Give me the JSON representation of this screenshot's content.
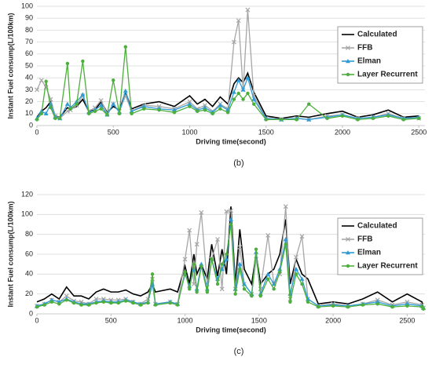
{
  "chart_data": [
    {
      "type": "line",
      "caption": "(b)",
      "ylabel": "Instant Fuel consump(L/100km)",
      "xlabel": "Driving time(second)",
      "x": [
        0,
        30,
        60,
        90,
        120,
        150,
        200,
        220,
        260,
        300,
        340,
        380,
        420,
        460,
        500,
        540,
        580,
        620,
        700,
        800,
        900,
        1000,
        1050,
        1100,
        1150,
        1200,
        1250,
        1290,
        1320,
        1350,
        1380,
        1420,
        1500,
        1600,
        1700,
        1780,
        1900,
        2000,
        2100,
        2200,
        2300,
        2400,
        2500
      ],
      "series": [
        {
          "name": "Calculated",
          "color": "#000000",
          "marker": "none",
          "values": [
            7,
            12,
            15,
            20,
            8,
            7,
            15,
            14,
            16,
            22,
            12,
            13,
            20,
            11,
            16,
            13,
            28,
            14,
            18,
            20,
            16,
            25,
            18,
            22,
            16,
            24,
            18,
            35,
            40,
            36,
            44,
            28,
            8,
            6,
            8,
            7,
            10,
            12,
            7,
            9,
            13,
            7,
            8
          ]
        },
        {
          "name": "FFB",
          "color": "#a6a6a6",
          "marker": "x",
          "values": [
            30,
            38,
            32,
            22,
            8,
            6,
            12,
            13,
            17,
            25,
            12,
            15,
            21,
            10,
            18,
            12,
            25,
            12,
            17,
            16,
            14,
            20,
            14,
            17,
            12,
            18,
            14,
            70,
            88,
            30,
            97,
            25,
            6,
            5,
            6,
            5,
            8,
            9,
            6,
            7,
            10,
            6,
            6
          ]
        },
        {
          "name": "Elman",
          "color": "#2e9bd6",
          "marker": "triangle",
          "values": [
            6,
            12,
            10,
            18,
            7,
            6,
            18,
            15,
            20,
            26,
            11,
            13,
            17,
            9,
            18,
            11,
            29,
            12,
            16,
            14,
            13,
            18,
            13,
            15,
            11,
            17,
            13,
            28,
            38,
            30,
            40,
            22,
            6,
            5,
            6,
            5,
            7,
            9,
            6,
            7,
            9,
            6,
            7
          ]
        },
        {
          "name": "Layer Recurrent",
          "color": "#4caf3c",
          "marker": "circle",
          "values": [
            5,
            10,
            37,
            15,
            6,
            6,
            52,
            14,
            18,
            54,
            10,
            12,
            14,
            9,
            38,
            10,
            66,
            10,
            14,
            13,
            11,
            16,
            12,
            13,
            10,
            14,
            11,
            22,
            27,
            22,
            27,
            18,
            5,
            5,
            5,
            18,
            6,
            8,
            5,
            6,
            8,
            5,
            6
          ]
        }
      ],
      "xlim": [
        0,
        2540
      ],
      "xticks": [
        0,
        500,
        1000,
        1500,
        2000,
        2500
      ],
      "ylim": [
        0,
        100
      ],
      "yticks": [
        0,
        10,
        20,
        30,
        40,
        50,
        60,
        70,
        80,
        90,
        100
      ],
      "grid": true,
      "legend": "right"
    },
    {
      "type": "line",
      "caption": "(c)",
      "ylabel": "Instant Fuel consump(L/100km)",
      "xlabel": "Driving time(second)",
      "x": [
        0,
        50,
        100,
        150,
        200,
        250,
        300,
        350,
        400,
        450,
        500,
        550,
        600,
        650,
        700,
        750,
        780,
        800,
        900,
        950,
        1000,
        1030,
        1060,
        1080,
        1110,
        1150,
        1180,
        1220,
        1250,
        1280,
        1310,
        1340,
        1370,
        1400,
        1450,
        1480,
        1510,
        1560,
        1600,
        1640,
        1680,
        1710,
        1750,
        1790,
        1830,
        1900,
        2000,
        2100,
        2200,
        2300,
        2400,
        2500,
        2600,
        2610
      ],
      "series": [
        {
          "name": "Calculated",
          "color": "#000000",
          "marker": "none",
          "values": [
            12,
            15,
            20,
            15,
            27,
            18,
            18,
            15,
            22,
            25,
            22,
            22,
            24,
            20,
            18,
            22,
            30,
            22,
            25,
            22,
            48,
            30,
            60,
            40,
            50,
            35,
            70,
            38,
            65,
            40,
            108,
            30,
            85,
            45,
            30,
            60,
            30,
            40,
            45,
            60,
            95,
            30,
            55,
            40,
            35,
            10,
            12,
            10,
            15,
            22,
            12,
            20,
            12,
            5
          ]
        },
        {
          "name": "FFB",
          "color": "#a6a6a6",
          "marker": "x",
          "values": [
            8,
            10,
            14,
            12,
            18,
            13,
            12,
            10,
            15,
            15,
            14,
            14,
            15,
            12,
            10,
            15,
            35,
            10,
            12,
            10,
            55,
            84,
            30,
            70,
            102,
            30,
            55,
            75,
            25,
            103,
            104,
            25,
            67,
            30,
            20,
            55,
            25,
            79,
            30,
            40,
            108,
            15,
            57,
            78,
            15,
            8,
            10,
            8,
            10,
            14,
            9,
            12,
            9,
            6
          ]
        },
        {
          "name": "Elman",
          "color": "#2e9bd6",
          "marker": "triangle",
          "values": [
            8,
            10,
            14,
            12,
            15,
            12,
            10,
            10,
            12,
            13,
            12,
            12,
            14,
            12,
            10,
            12,
            30,
            10,
            12,
            10,
            40,
            28,
            45,
            25,
            50,
            25,
            55,
            35,
            45,
            55,
            95,
            25,
            50,
            30,
            20,
            62,
            20,
            40,
            30,
            45,
            75,
            20,
            45,
            35,
            15,
            8,
            9,
            8,
            10,
            12,
            8,
            10,
            8,
            6
          ]
        },
        {
          "name": "Layer Recurrent",
          "color": "#4caf3c",
          "marker": "circle",
          "values": [
            7,
            9,
            12,
            10,
            14,
            11,
            9,
            9,
            11,
            12,
            11,
            11,
            13,
            11,
            9,
            11,
            40,
            9,
            11,
            9,
            42,
            25,
            50,
            22,
            48,
            22,
            55,
            30,
            50,
            60,
            90,
            20,
            45,
            25,
            18,
            65,
            18,
            35,
            25,
            42,
            70,
            12,
            40,
            30,
            12,
            7,
            8,
            7,
            9,
            10,
            7,
            8,
            7,
            5
          ]
        }
      ],
      "xlim": [
        0,
        2620
      ],
      "xticks": [
        0,
        500,
        1000,
        1500,
        2000,
        2500
      ],
      "ylim": [
        0,
        120
      ],
      "yticks": [
        0,
        20,
        40,
        60,
        80,
        100,
        120
      ],
      "grid": true,
      "legend": "right"
    }
  ]
}
